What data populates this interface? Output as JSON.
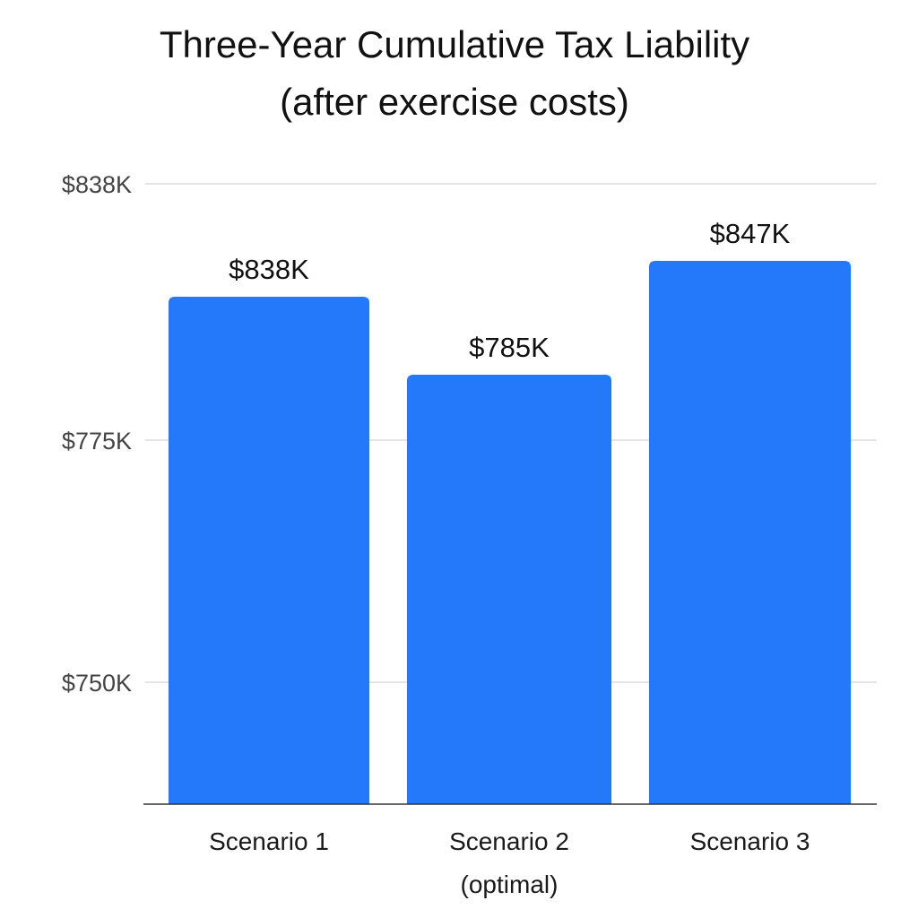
{
  "chart_data": {
    "type": "bar",
    "title": [
      "Three-Year Cumulative Tax Liability",
      "(after exercise costs)"
    ],
    "xlabel": "",
    "ylabel": "",
    "categories": [
      [
        "Scenario 1"
      ],
      [
        "Scenario 2",
        "(optimal)"
      ],
      [
        "Scenario 3"
      ]
    ],
    "values": [
      838,
      785,
      847
    ],
    "data_labels": [
      "$838K",
      "$785K",
      "$847K"
    ],
    "y_ticks": [
      {
        "value": 838,
        "label": "$838K"
      },
      {
        "value": 775,
        "label": "$775K"
      },
      {
        "value": 750,
        "label": "$750K"
      }
    ],
    "grid": true,
    "bar_color": "#2478FA",
    "grid_color": "#d4d4d4",
    "axis_color": "#333333"
  }
}
